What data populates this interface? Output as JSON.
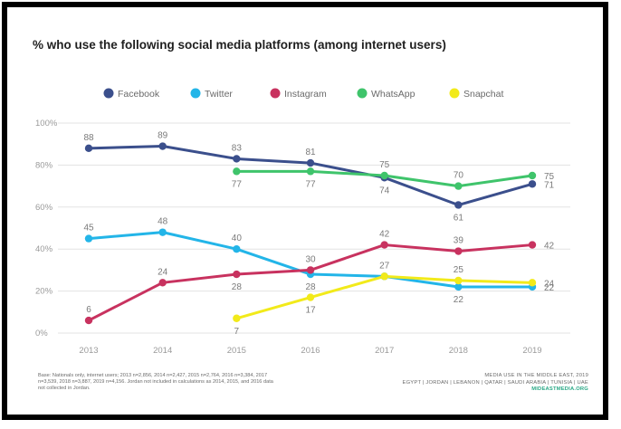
{
  "title": "% who use the following social media platforms (among internet users)",
  "chart_data": {
    "type": "line",
    "title": "% who use the following social media platforms (among internet users)",
    "x": [
      "2013",
      "2014",
      "2015",
      "2016",
      "2017",
      "2018",
      "2019"
    ],
    "y_ticks": [
      "0%",
      "20%",
      "40%",
      "60%",
      "80%",
      "100%"
    ],
    "ylim": [
      0,
      100
    ],
    "grid": true,
    "legend_position": "top",
    "series": [
      {
        "name": "Facebook",
        "color": "#3b4f8c",
        "values": [
          88,
          89,
          83,
          81,
          74,
          61,
          71
        ],
        "labels": [
          "88",
          "89",
          "83",
          "81",
          "74",
          "61",
          "71"
        ]
      },
      {
        "name": "Twitter",
        "color": "#23b5e8",
        "values": [
          45,
          48,
          40,
          28,
          27,
          22,
          22
        ],
        "labels": [
          "45",
          "48",
          "40",
          "28",
          "",
          "22",
          "22"
        ]
      },
      {
        "name": "Instagram",
        "color": "#c8325f",
        "values": [
          6,
          24,
          28,
          30,
          42,
          39,
          42
        ],
        "labels": [
          "6",
          "24",
          "28",
          "30",
          "42",
          "39",
          "42"
        ]
      },
      {
        "name": "WhatsApp",
        "color": "#3fc46b",
        "values": [
          null,
          null,
          77,
          77,
          75,
          70,
          75
        ],
        "labels": [
          "",
          "",
          "77",
          "77",
          "75",
          "70",
          "75"
        ]
      },
      {
        "name": "Snapchat",
        "color": "#f2ea1a",
        "values": [
          null,
          null,
          7,
          17,
          27,
          25,
          24
        ],
        "labels": [
          "",
          "",
          "7",
          "17",
          "27",
          "25",
          "24"
        ]
      }
    ]
  },
  "footer": {
    "basis": "Base: Nationals only, internet users; 2013 n=2,856, 2014 n=2,427, 2015 n=2,764, 2016 n=3,384, 2017 n=3,539, 2018 n=3,887, 2019 n=4,156. Jordan not included in calculations as 2014, 2015, and 2016 data not collected in Jordan.",
    "source": "MEDIA USE IN THE MIDDLE EAST, 2019",
    "countries": "EGYPT | JORDAN | LEBANON | QATAR | SAUDI ARABIA | TUNISIA | UAE",
    "site": "MIDEASTMEDIA.ORG"
  }
}
